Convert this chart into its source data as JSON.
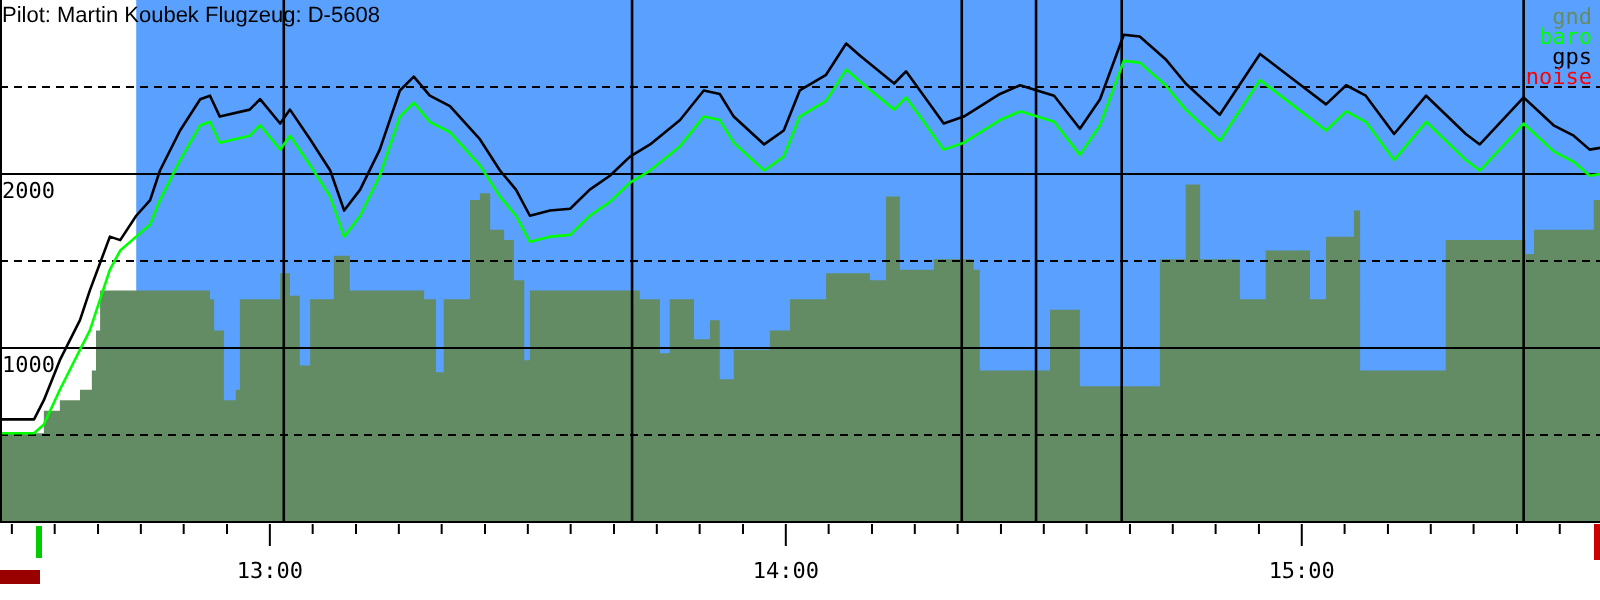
{
  "chart_data": {
    "type": "line",
    "title": "Pilot: Martin Koubek Flugzeug: D-5608",
    "xlim": [
      12.477,
      15.578
    ],
    "ylim": [
      0,
      3000
    ],
    "xticks": [
      {
        "value": 12.5,
        "label": null
      },
      {
        "value": 12.583,
        "label": null
      },
      {
        "value": 12.667,
        "label": null
      },
      {
        "value": 12.75,
        "label": null
      },
      {
        "value": 12.833,
        "label": null
      },
      {
        "value": 12.917,
        "label": null
      },
      {
        "value": 13,
        "label": "13:00"
      },
      {
        "value": 13.083,
        "label": null
      },
      {
        "value": 13.167,
        "label": null
      },
      {
        "value": 13.25,
        "label": null
      },
      {
        "value": 13.333,
        "label": null
      },
      {
        "value": 13.417,
        "label": null
      },
      {
        "value": 13.5,
        "label": null
      },
      {
        "value": 13.583,
        "label": null
      },
      {
        "value": 13.667,
        "label": null
      },
      {
        "value": 13.75,
        "label": null
      },
      {
        "value": 13.833,
        "label": null
      },
      {
        "value": 13.917,
        "label": null
      },
      {
        "value": 14,
        "label": "14:00"
      },
      {
        "value": 14.083,
        "label": null
      },
      {
        "value": 14.167,
        "label": null
      },
      {
        "value": 14.25,
        "label": null
      },
      {
        "value": 14.333,
        "label": null
      },
      {
        "value": 14.417,
        "label": null
      },
      {
        "value": 14.5,
        "label": null
      },
      {
        "value": 14.583,
        "label": null
      },
      {
        "value": 14.667,
        "label": null
      },
      {
        "value": 14.75,
        "label": null
      },
      {
        "value": 14.833,
        "label": null
      },
      {
        "value": 14.917,
        "label": null
      },
      {
        "value": 15,
        "label": "15:00"
      },
      {
        "value": 15.083,
        "label": null
      },
      {
        "value": 15.167,
        "label": null
      },
      {
        "value": 15.25,
        "label": null
      },
      {
        "value": 15.333,
        "label": null
      },
      {
        "value": 15.417,
        "label": null
      },
      {
        "value": 15.5,
        "label": null
      }
    ],
    "yticks": [
      {
        "value": 500,
        "label": null
      },
      1000,
      {
        "value": 1500,
        "label": null
      },
      2000,
      {
        "value": 2500,
        "label": null
      }
    ],
    "grid": "y",
    "legend": "top right",
    "bands": [
      {
        "axis": "x",
        "from": 12.741,
        "to": 15.578,
        "color": "#5aa0ff"
      }
    ],
    "ref_lines": [
      {
        "axis": "x",
        "value": 13.027
      },
      {
        "axis": "x",
        "value": 13.702
      },
      {
        "axis": "x",
        "value": 14.341
      },
      {
        "axis": "x",
        "value": 14.485
      },
      {
        "axis": "x",
        "value": 14.651
      },
      {
        "axis": "x",
        "value": 15.43
      }
    ],
    "series": [
      {
        "name": "gnd",
        "type": "area",
        "color": "#648c64",
        "x": [
          12.477,
          12.555,
          12.562,
          12.593,
          12.632,
          12.655,
          12.663,
          12.671,
          12.865,
          12.884,
          12.892,
          12.911,
          12.934,
          12.942,
          13.02,
          13.039,
          13.058,
          13.078,
          13.124,
          13.155,
          13.272,
          13.299,
          13.322,
          13.337,
          13.388,
          13.407,
          13.427,
          13.454,
          13.473,
          13.493,
          13.504,
          13.64,
          13.717,
          13.756,
          13.775,
          13.822,
          13.853,
          13.872,
          13.899,
          13.969,
          14.008,
          14.078,
          14.124,
          14.163,
          14.194,
          14.221,
          14.287,
          14.364,
          14.376,
          14.481,
          14.512,
          14.57,
          14.694,
          14.725,
          14.775,
          14.803,
          14.853,
          14.88,
          14.93,
          14.985,
          15.016,
          15.047,
          15.101,
          15.113,
          15.256,
          15.279,
          15.434,
          15.45,
          15.539,
          15.566,
          15.578
        ],
        "values": [
          510,
          510,
          640,
          700,
          760,
          870,
          1100,
          1330,
          1330,
          1280,
          1100,
          700,
          760,
          1280,
          1430,
          1300,
          900,
          1280,
          1530,
          1330,
          1330,
          1280,
          860,
          1280,
          1850,
          1890,
          1680,
          1620,
          1390,
          930,
          1330,
          1330,
          1280,
          970,
          1280,
          1050,
          1160,
          820,
          990,
          1100,
          1280,
          1430,
          1430,
          1390,
          1870,
          1450,
          1510,
          1450,
          870,
          870,
          1220,
          780,
          780,
          1510,
          1940,
          1510,
          1510,
          1280,
          1560,
          1560,
          1280,
          1640,
          1790,
          870,
          870,
          1620,
          1540,
          1680,
          1680,
          1850,
          1680
        ]
      },
      {
        "name": "baro",
        "color": "#00ff00",
        "x": [
          12.477,
          12.543,
          12.562,
          12.593,
          12.632,
          12.651,
          12.69,
          12.71,
          12.741,
          12.768,
          12.787,
          12.826,
          12.865,
          12.884,
          12.903,
          12.961,
          12.981,
          13.02,
          13.039,
          13.078,
          13.117,
          13.144,
          13.175,
          13.213,
          13.252,
          13.279,
          13.31,
          13.349,
          13.407,
          13.446,
          13.477,
          13.504,
          13.543,
          13.582,
          13.62,
          13.659,
          13.698,
          13.737,
          13.795,
          13.841,
          13.872,
          13.899,
          13.958,
          13.996,
          14.027,
          14.078,
          14.117,
          14.144,
          14.21,
          14.233,
          14.26,
          14.306,
          14.345,
          14.415,
          14.454,
          14.52,
          14.57,
          14.609,
          14.655,
          14.686,
          14.736,
          14.775,
          14.841,
          14.919,
          14.985,
          15.047,
          15.086,
          15.124,
          15.179,
          15.241,
          15.318,
          15.345,
          15.43,
          15.488,
          15.527,
          15.558,
          15.578
        ],
        "values": [
          510,
          510,
          560,
          760,
          990,
          1100,
          1450,
          1560,
          1640,
          1710,
          1850,
          2080,
          2280,
          2300,
          2180,
          2220,
          2280,
          2140,
          2220,
          2050,
          1870,
          1640,
          1760,
          1990,
          2330,
          2410,
          2300,
          2240,
          2050,
          1870,
          1760,
          1610,
          1640,
          1650,
          1760,
          1840,
          1950,
          2020,
          2160,
          2330,
          2310,
          2180,
          2020,
          2100,
          2330,
          2420,
          2600,
          2530,
          2370,
          2440,
          2330,
          2140,
          2180,
          2310,
          2360,
          2300,
          2110,
          2280,
          2650,
          2640,
          2510,
          2370,
          2190,
          2540,
          2390,
          2250,
          2360,
          2300,
          2080,
          2300,
          2080,
          2020,
          2290,
          2130,
          2070,
          1990,
          2000
        ]
      },
      {
        "name": "gps",
        "color": "#000000",
        "x": [
          12.477,
          12.543,
          12.562,
          12.593,
          12.632,
          12.651,
          12.69,
          12.71,
          12.741,
          12.768,
          12.787,
          12.826,
          12.865,
          12.884,
          12.903,
          12.961,
          12.981,
          13.02,
          13.039,
          13.078,
          13.117,
          13.144,
          13.175,
          13.213,
          13.252,
          13.279,
          13.31,
          13.349,
          13.407,
          13.446,
          13.477,
          13.504,
          13.543,
          13.582,
          13.62,
          13.659,
          13.698,
          13.737,
          13.795,
          13.841,
          13.872,
          13.899,
          13.958,
          13.996,
          14.027,
          14.078,
          14.117,
          14.144,
          14.21,
          14.233,
          14.26,
          14.306,
          14.345,
          14.415,
          14.454,
          14.52,
          14.57,
          14.609,
          14.655,
          14.686,
          14.736,
          14.775,
          14.841,
          14.919,
          14.985,
          15.047,
          15.086,
          15.124,
          15.179,
          15.241,
          15.318,
          15.345,
          15.43,
          15.488,
          15.527,
          15.558,
          15.578
        ],
        "values": [
          590,
          590,
          700,
          930,
          1160,
          1330,
          1640,
          1620,
          1760,
          1850,
          2020,
          2250,
          2430,
          2450,
          2330,
          2370,
          2430,
          2290,
          2370,
          2200,
          2020,
          1790,
          1910,
          2140,
          2480,
          2560,
          2450,
          2390,
          2200,
          2020,
          1910,
          1760,
          1790,
          1800,
          1910,
          1990,
          2100,
          2170,
          2310,
          2480,
          2460,
          2330,
          2170,
          2250,
          2480,
          2570,
          2750,
          2680,
          2520,
          2590,
          2480,
          2290,
          2330,
          2460,
          2510,
          2450,
          2260,
          2430,
          2800,
          2790,
          2660,
          2520,
          2340,
          2690,
          2540,
          2400,
          2510,
          2450,
          2230,
          2450,
          2230,
          2170,
          2440,
          2280,
          2220,
          2140,
          2150
        ]
      },
      {
        "name": "noise",
        "color": "#ff0000"
      }
    ]
  }
}
